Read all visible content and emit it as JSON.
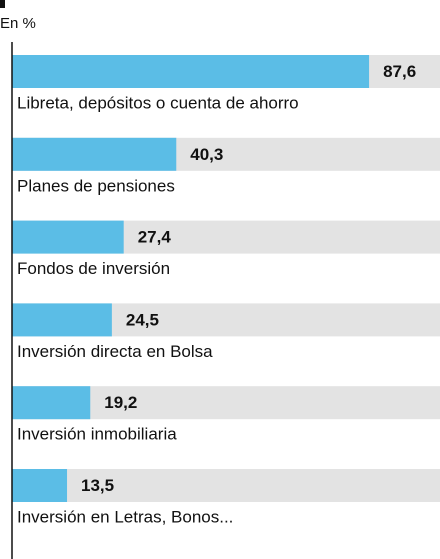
{
  "chart_data": {
    "type": "barh",
    "subtitle": "En %",
    "categories": [
      "Libreta, depósitos o cuenta de ahorro",
      "Planes de pensiones",
      "Fondos de inversión",
      "Inversión directa en Bolsa",
      "Inversión inmobiliaria",
      "Inversión en Letras, Bonos..."
    ],
    "values": [
      87.6,
      40.3,
      27.4,
      24.5,
      19.2,
      13.5
    ],
    "value_labels": [
      "87,6",
      "40,3",
      "27,4",
      "24,5",
      "19,2",
      "13,5"
    ],
    "color": "#5bbde6",
    "track_color": "#e3e3e3",
    "xlim": [
      0,
      105
    ]
  }
}
